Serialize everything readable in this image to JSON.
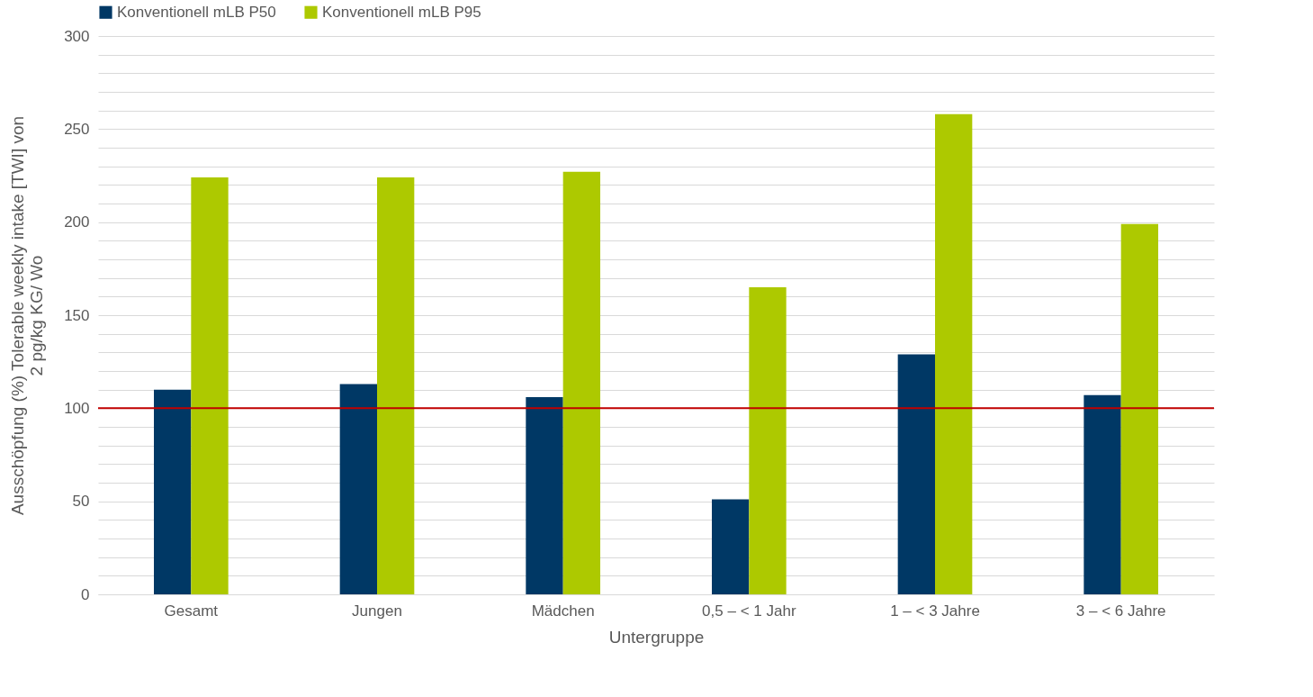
{
  "chart_data": {
    "type": "bar",
    "xlabel": "Untergruppe",
    "ylabel": "Ausschöpfung (%) Tolerable weekly intake [TWI] von\n2 pg/kg KG/ Wo",
    "categories": [
      "Gesamt",
      "Jungen",
      "Mädchen",
      "0,5 – < 1 Jahr",
      "1 – < 3 Jahre",
      "3 – < 6 Jahre"
    ],
    "series": [
      {
        "name": "Konventionell mLB P50",
        "color": "#003865",
        "values": [
          110,
          113,
          106,
          51,
          129,
          107
        ]
      },
      {
        "name": "Konventionell mLB P95",
        "color": "#adc900",
        "values": [
          224,
          224,
          227,
          165,
          258,
          199
        ]
      }
    ],
    "ylim": [
      0,
      300
    ],
    "yticks": [
      0,
      {
        "value": 10,
        "label": null
      },
      {
        "value": 20,
        "label": null
      },
      {
        "value": 30,
        "label": null
      },
      {
        "value": 40,
        "label": null
      },
      50,
      {
        "value": 60,
        "label": null
      },
      {
        "value": 70,
        "label": null
      },
      {
        "value": 80,
        "label": null
      },
      {
        "value": 90,
        "label": null
      },
      100,
      {
        "value": 110,
        "label": null
      },
      {
        "value": 120,
        "label": null
      },
      {
        "value": 130,
        "label": null
      },
      {
        "value": 140,
        "label": null
      },
      150,
      {
        "value": 160,
        "label": null
      },
      {
        "value": 170,
        "label": null
      },
      {
        "value": 180,
        "label": null
      },
      {
        "value": 190,
        "label": null
      },
      200,
      {
        "value": 210,
        "label": null
      },
      {
        "value": 220,
        "label": null
      },
      {
        "value": 230,
        "label": null
      },
      {
        "value": 240,
        "label": null
      },
      250,
      {
        "value": 260,
        "label": null
      },
      {
        "value": 270,
        "label": null
      },
      {
        "value": 280,
        "label": null
      },
      {
        "value": 290,
        "label": null
      },
      300
    ],
    "ref_lines": [
      {
        "axis": "y",
        "value": 100,
        "color": "#c00000"
      }
    ],
    "grid": "y",
    "legend": "top"
  }
}
